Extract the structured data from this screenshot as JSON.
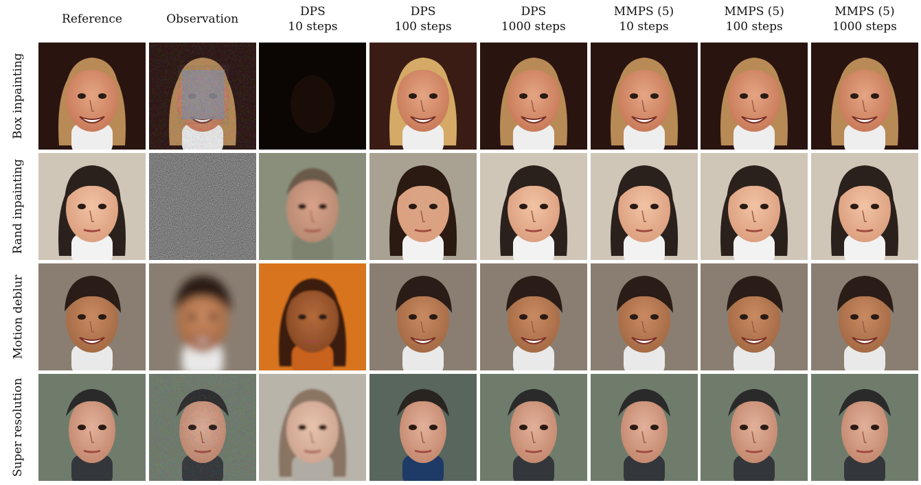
{
  "columns": [
    {
      "line1": "",
      "line2": "Reference"
    },
    {
      "line1": "",
      "line2": "Observation"
    },
    {
      "line1": "DPS",
      "line2": "10 steps"
    },
    {
      "line1": "DPS",
      "line2": "100 steps"
    },
    {
      "line1": "DPS",
      "line2": "1000 steps"
    },
    {
      "line1": "MMPS (5)",
      "line2": "10 steps"
    },
    {
      "line1": "MMPS (5)",
      "line2": "100 steps"
    },
    {
      "line1": "MMPS (5)",
      "line2": "1000 steps"
    }
  ],
  "rows": [
    {
      "label": "Box inpainting"
    },
    {
      "label": "Rand inpainting"
    },
    {
      "label": "Motion deblur"
    },
    {
      "label": "Super resolution"
    }
  ],
  "colors": {
    "skin_light": "#e4a583",
    "skin_warm": "#c98a62",
    "hair_blonde": "#b88a56",
    "hair_dark": "#2b211c",
    "bg_dark": "#2a1410",
    "bg_beige": "#cfc6b8",
    "bg_gray": "#6f7c6c",
    "noise_gray": "#8f8f8f",
    "orange": "#d8741d"
  }
}
